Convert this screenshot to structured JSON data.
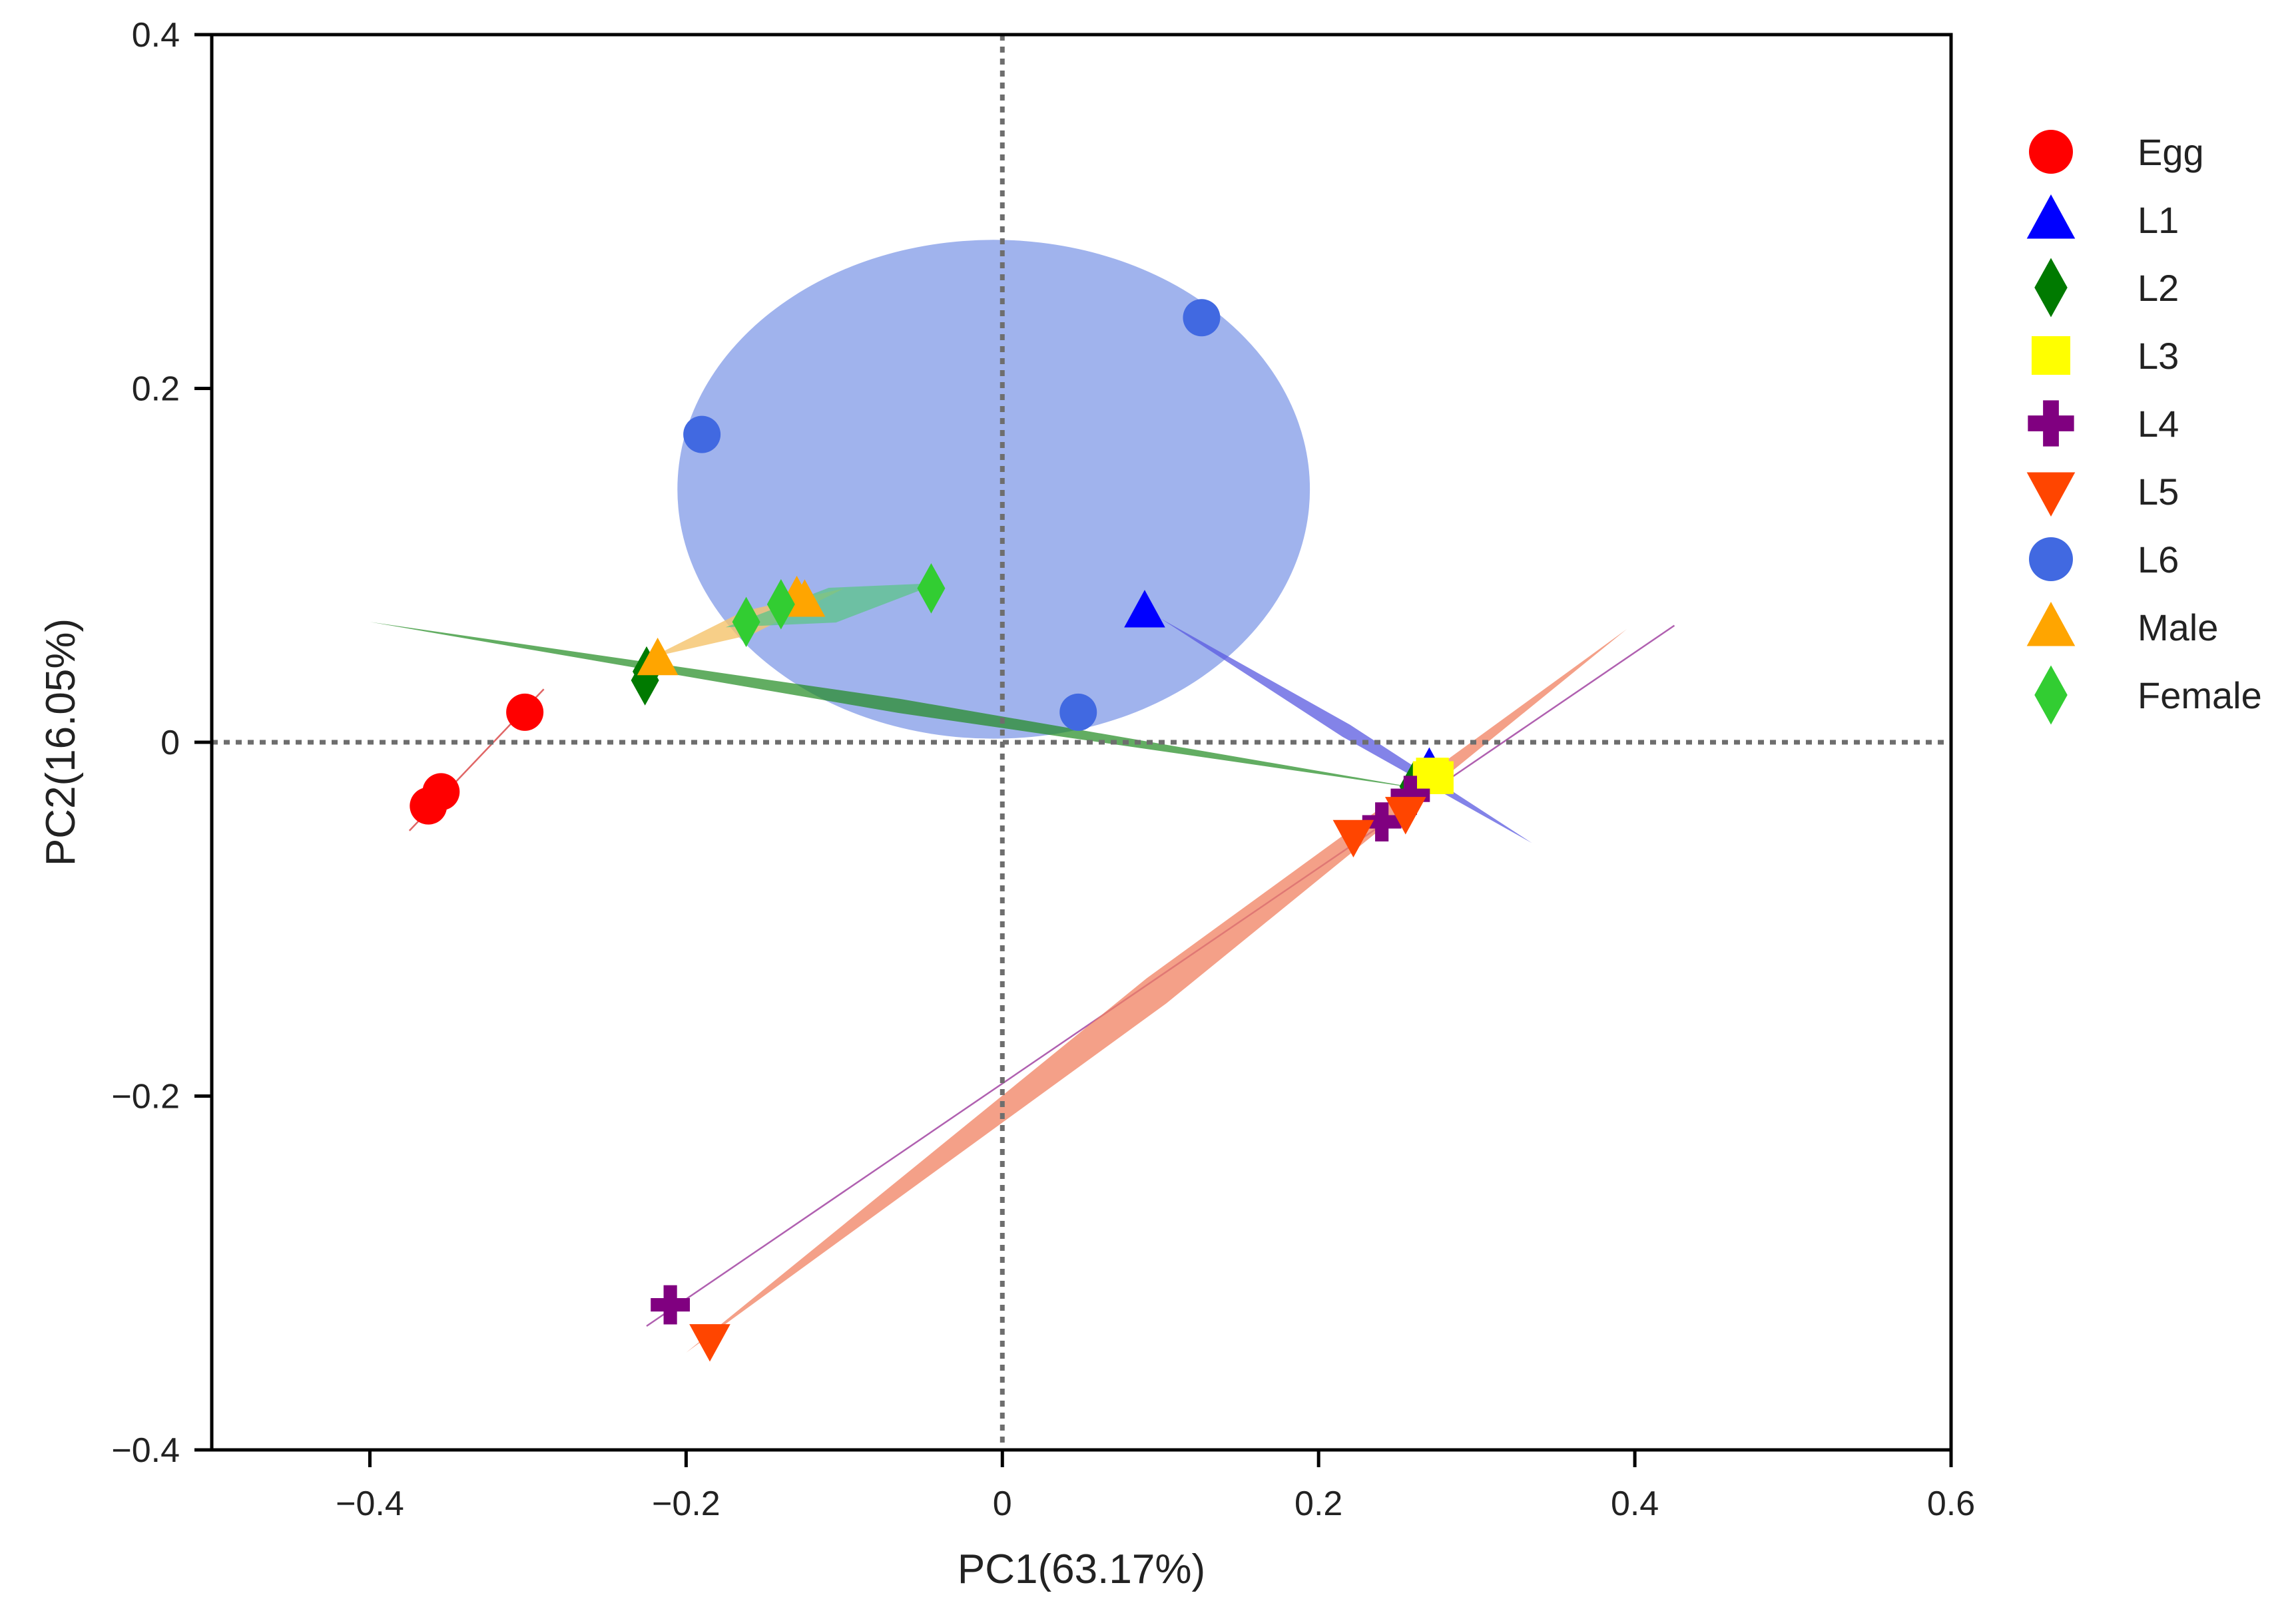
{
  "chart_data": {
    "type": "scatter",
    "title": "",
    "xlabel": "PC1(63.17%)",
    "ylabel": "PC2(16.05%)",
    "xlim": [
      -0.5,
      0.6
    ],
    "ylim": [
      -0.4,
      0.4
    ],
    "xticks": [
      -0.4,
      -0.2,
      0,
      0.2,
      0.4,
      0.6
    ],
    "yticks": [
      -0.4,
      -0.2,
      0,
      0.2,
      0.4
    ],
    "xtick_labels": [
      "−0.4",
      "−0.2",
      "0",
      "0.2",
      "0.4",
      "0.6"
    ],
    "ytick_labels": [
      "−0.4",
      "−0.2",
      "0",
      "0.2",
      "0.4"
    ],
    "reference_lines": {
      "x": 0,
      "y": 0,
      "style": "dotted"
    },
    "legend_position": "right",
    "series": [
      {
        "name": "Egg",
        "marker": "circle",
        "color": "#ff0000",
        "points": [
          [
            -0.302,
            0.017
          ],
          [
            -0.355,
            -0.028
          ],
          [
            -0.363,
            -0.036
          ]
        ],
        "ellipse": {
          "type": "line",
          "from": [
            -0.375,
            -0.05
          ],
          "to": [
            -0.29,
            0.03
          ],
          "color": "#e06666"
        }
      },
      {
        "name": "L1",
        "marker": "triangle-up",
        "color": "#0000ff",
        "points": [
          [
            0.09,
            0.074
          ],
          [
            0.27,
            -0.015
          ],
          [
            0.272,
            -0.02
          ]
        ],
        "ellipse": {
          "type": "band",
          "from": [
            0.1,
            0.07
          ],
          "to": [
            0.335,
            -0.057
          ],
          "width": 0.004,
          "color": "#5a5ae0",
          "opacity": 0.75
        }
      },
      {
        "name": "L2",
        "marker": "diamond",
        "color": "#007a00",
        "points": [
          [
            -0.225,
            0.04
          ],
          [
            -0.226,
            0.035
          ],
          [
            0.26,
            -0.025
          ]
        ],
        "ellipse": {
          "type": "band",
          "from": [
            -0.4,
            0.068
          ],
          "to": [
            0.27,
            -0.027
          ],
          "width": 0.004,
          "color": "#1f8a1f",
          "opacity": 0.7
        }
      },
      {
        "name": "L3",
        "marker": "square",
        "color": "#ffff00",
        "points": [
          [
            0.275,
            -0.02
          ],
          [
            0.27,
            -0.02
          ],
          [
            0.272,
            -0.018
          ]
        ]
      },
      {
        "name": "L4",
        "marker": "plus",
        "color": "#800080",
        "points": [
          [
            -0.21,
            -0.318
          ],
          [
            0.24,
            -0.045
          ],
          [
            0.258,
            -0.03
          ]
        ],
        "ellipse": {
          "type": "line",
          "from": [
            -0.225,
            -0.33
          ],
          "to": [
            0.425,
            0.066
          ],
          "color": "#b060b0"
        }
      },
      {
        "name": "L5",
        "marker": "triangle-down",
        "color": "#ff4500",
        "points": [
          [
            -0.185,
            -0.338
          ],
          [
            0.222,
            -0.053
          ],
          [
            0.255,
            -0.04
          ]
        ],
        "ellipse": {
          "type": "band",
          "from": [
            -0.2,
            -0.345
          ],
          "to": [
            0.395,
            0.064
          ],
          "width": 0.009,
          "color": "#f08060",
          "opacity": 0.75
        }
      },
      {
        "name": "L6",
        "marker": "circle",
        "color": "#4169e1",
        "points": [
          [
            0.126,
            0.24
          ],
          [
            -0.19,
            0.174
          ],
          [
            0.048,
            0.017
          ]
        ],
        "ellipse": {
          "type": "ellipse",
          "cx": -0.0055,
          "cy": 0.143,
          "rx": 0.2,
          "ry": 0.141,
          "color": "#8fa6ea",
          "opacity": 0.85
        }
      },
      {
        "name": "Male",
        "marker": "triangle-up",
        "color": "#ffa500",
        "points": [
          [
            -0.218,
            0.047
          ],
          [
            -0.13,
            0.082
          ],
          [
            -0.125,
            0.08
          ]
        ],
        "ellipse": {
          "type": "band",
          "from": [
            -0.222,
            0.048
          ],
          "to": [
            -0.1,
            0.087
          ],
          "width": 0.007,
          "color": "#f5c36a",
          "opacity": 0.8
        }
      },
      {
        "name": "Female",
        "marker": "diamond",
        "color": "#32cd32",
        "points": [
          [
            -0.045,
            0.087
          ],
          [
            -0.14,
            0.078
          ],
          [
            -0.162,
            0.068
          ]
        ],
        "ellipse": {
          "type": "band",
          "from": [
            -0.175,
            0.065
          ],
          "to": [
            -0.04,
            0.09
          ],
          "width": 0.01,
          "color": "#5cc48a",
          "opacity": 0.75
        }
      }
    ]
  }
}
